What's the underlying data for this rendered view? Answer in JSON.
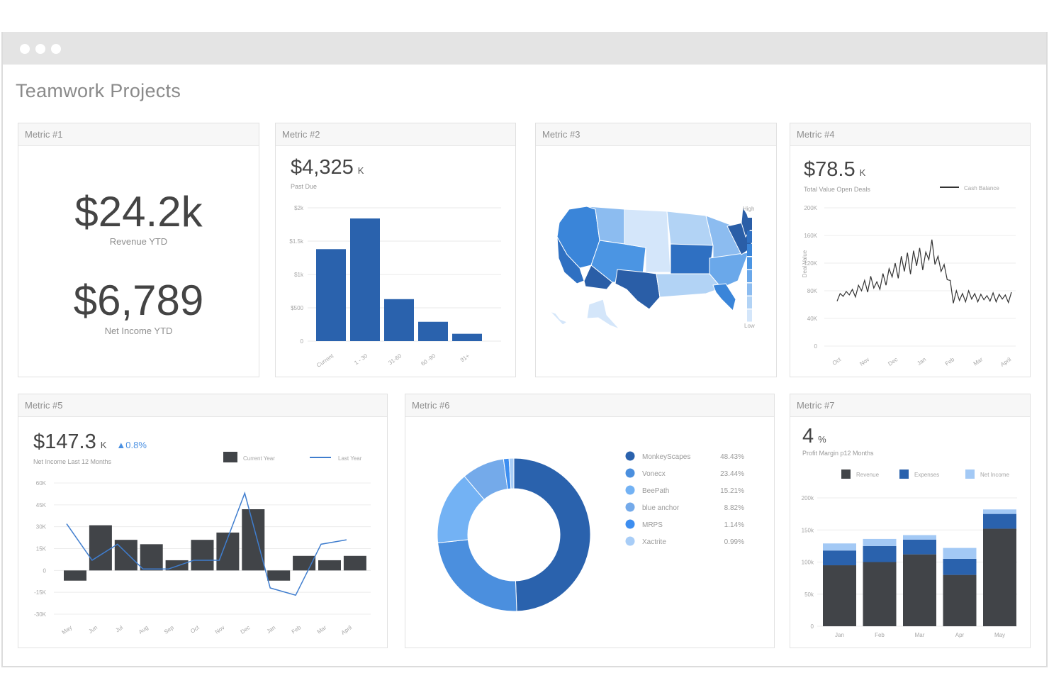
{
  "app": {
    "title": "Teamwork Projects"
  },
  "metric1": {
    "title": "Metric #1",
    "revenue_value": "$24.2k",
    "revenue_label": "Revenue YTD",
    "income_value": "$6,789",
    "income_label": "Net Income YTD"
  },
  "metric2": {
    "title": "Metric #2",
    "value": "$4,325",
    "unit": "K",
    "label": "Past Due",
    "chart_data": {
      "type": "bar",
      "categories": [
        "Current",
        "1 - 30",
        "31-60",
        "60 -90",
        "91+"
      ],
      "values": [
        1380,
        1840,
        630,
        290,
        110
      ],
      "ylim": [
        0,
        2000
      ],
      "y_ticks": [
        0,
        500,
        1000,
        1500,
        2000
      ],
      "y_tick_labels": [
        "0",
        "$500",
        "$1k",
        "$1.5k",
        "$2k"
      ]
    }
  },
  "metric3": {
    "title": "Metric #3",
    "legend_high": "High",
    "legend_low": "Low",
    "colors": [
      "#2a5ea7",
      "#2f70c2",
      "#3a85d9",
      "#4b95e3",
      "#6aa8ea",
      "#8cbcf0",
      "#b2d3f5",
      "#d4e6fa"
    ]
  },
  "metric4": {
    "title": "Metric #4",
    "value": "$78.5",
    "unit": "K",
    "label": "Total Value Open Deals",
    "chart_data": {
      "type": "line",
      "legend": "Cash Balance",
      "ylabel": "Deal Value",
      "x_tick_labels": [
        "Oct",
        "Nov",
        "Dec",
        "Jan",
        "Feb",
        "Mar",
        "April"
      ],
      "y_ticks": [
        0,
        40000,
        80000,
        120000,
        160000,
        200000
      ],
      "y_tick_labels": [
        "0",
        "40K",
        "80K",
        "120K",
        "160K",
        "200K"
      ],
      "ylim": [
        0,
        200000
      ],
      "values": [
        65000,
        76000,
        72000,
        79000,
        74000,
        82000,
        71000,
        88000,
        80000,
        95000,
        78000,
        101000,
        84000,
        93000,
        82000,
        105000,
        88000,
        112000,
        100000,
        120000,
        98000,
        130000,
        108000,
        135000,
        104000,
        138000,
        116000,
        142000,
        110000,
        136000,
        125000,
        154000,
        118000,
        130000,
        108000,
        118000,
        96000,
        95000,
        62000,
        80000,
        66000,
        76000,
        64000,
        80000,
        68000,
        76000,
        64000,
        75000,
        67000,
        73000,
        65000,
        77000,
        64000,
        75000,
        68000,
        74000,
        63000,
        78000
      ]
    }
  },
  "metric5": {
    "title": "Metric #5",
    "value": "$147.3",
    "unit": "K",
    "change": "0.8%",
    "label": "Net Income Last 12 Months",
    "chart_data": {
      "type": "bar",
      "categories": [
        "May",
        "Jun",
        "Jul",
        "Aug",
        "Sep",
        "Oct",
        "Nov",
        "Dec",
        "Jan",
        "Feb",
        "Mar",
        "April"
      ],
      "series": [
        {
          "name": "Current Year",
          "values": [
            -7000,
            31000,
            21000,
            18000,
            7000,
            21000,
            26000,
            42000,
            -7000,
            10000,
            7000,
            10000
          ]
        },
        {
          "name": "Last Year",
          "values": [
            32000,
            7000,
            18000,
            1000,
            1000,
            7000,
            7000,
            53000,
            -12000,
            -17000,
            18000,
            21000
          ]
        }
      ],
      "y_ticks": [
        -30000,
        -15000,
        0,
        15000,
        30000,
        45000,
        60000
      ],
      "y_tick_labels": [
        "-30K",
        "-15K",
        "0",
        "15K",
        "30K",
        "45K",
        "60K"
      ],
      "ylim": [
        -30000,
        60000
      ]
    }
  },
  "metric6": {
    "title": "Metric #6",
    "chart_data": {
      "type": "pie",
      "labels": [
        "MonkeyScapes",
        "Vonecx",
        "BeePath",
        "blue anchor",
        "MRPS",
        "Xactrite"
      ],
      "values": [
        48.43,
        23.44,
        15.21,
        8.82,
        1.14,
        0.99
      ],
      "value_labels": [
        "48.43%",
        "23.44%",
        "15.21%",
        "8.82%",
        "1.14%",
        "0.99%"
      ],
      "colors": [
        "#2a62ad",
        "#4b8fde",
        "#73b2f4",
        "#74aaea",
        "#3d8ef0",
        "#a8cdf7"
      ]
    }
  },
  "metric7": {
    "title": "Metric #7",
    "value": "4",
    "unit": "%",
    "label": "Profit Margin p12 Months",
    "chart_data": {
      "type": "bar",
      "categories": [
        "Jan",
        "Feb",
        "Mar",
        "Apr",
        "May"
      ],
      "series": [
        {
          "name": "Revenue",
          "values": [
            95000,
            100000,
            112000,
            80000,
            152000
          ]
        },
        {
          "name": "Expenses",
          "values": [
            23000,
            25000,
            23000,
            25000,
            23000
          ]
        },
        {
          "name": "Net Income",
          "values": [
            11000,
            11000,
            7000,
            17000,
            7000
          ]
        }
      ],
      "colors": [
        "#414448",
        "#2a62ad",
        "#a3c9f5"
      ],
      "y_ticks": [
        0,
        50000,
        100000,
        150000,
        200000
      ],
      "y_tick_labels": [
        "0",
        "50k",
        "100k",
        "150k",
        "200k"
      ],
      "ylim": [
        0,
        200000
      ]
    }
  }
}
